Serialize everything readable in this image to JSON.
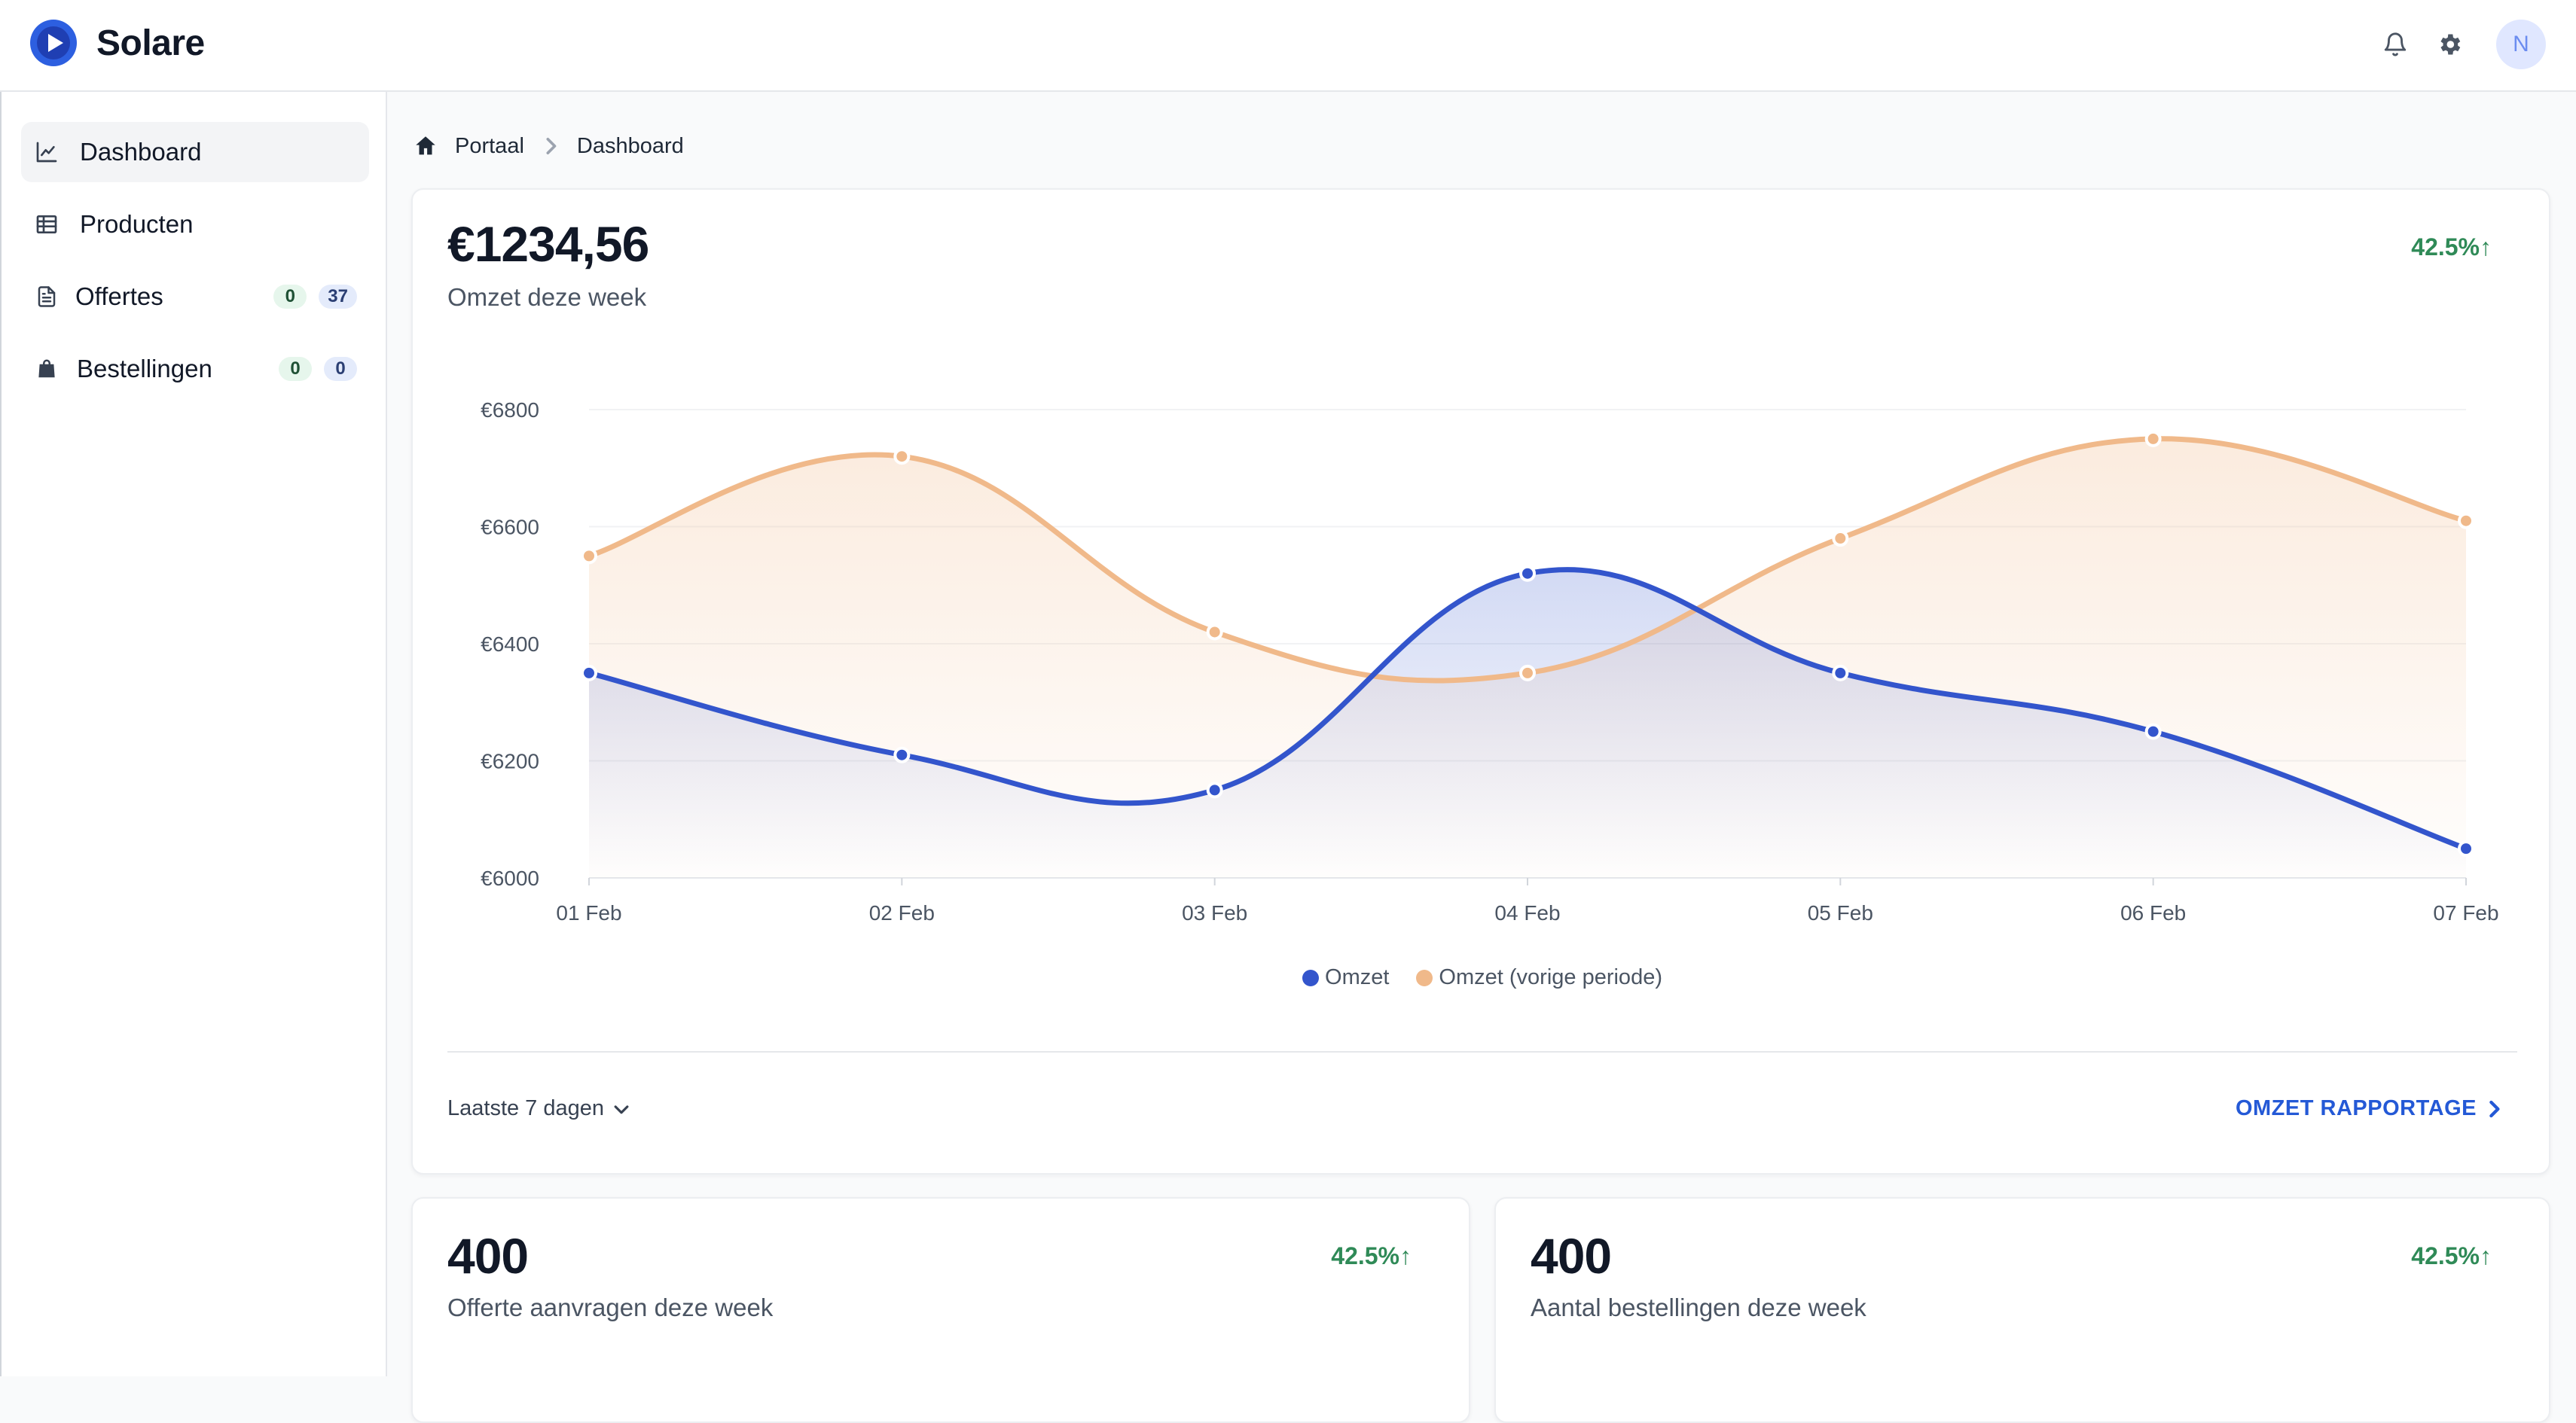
{
  "app": {
    "name": "Solare",
    "user_initial": "N"
  },
  "topbar": {
    "icons": [
      "bell-icon",
      "gear-icon"
    ]
  },
  "sidebar": {
    "items": [
      {
        "label": "Dashboard",
        "icon": "chart-line-icon",
        "active": true
      },
      {
        "label": "Producten",
        "icon": "table-icon"
      },
      {
        "label": "Offertes",
        "icon": "document-icon",
        "badges": [
          "0",
          "37"
        ]
      },
      {
        "label": "Bestellingen",
        "icon": "shopping-bag-icon",
        "badges": [
          "0",
          "0"
        ]
      }
    ]
  },
  "breadcrumb": {
    "items": [
      "Portaal",
      "Dashboard"
    ]
  },
  "revenue_card": {
    "value": "€1234,56",
    "label": "Omzet deze week",
    "change": "42.5%↑",
    "period": "Laatste 7 dagen",
    "link": "OMZET RAPPORTAGE"
  },
  "cards": [
    {
      "value": "400",
      "label": "Offerte aanvragen deze week",
      "change": "42.5%↑"
    },
    {
      "value": "400",
      "label": "Aantal bestellingen deze week",
      "change": "42.5%↑"
    }
  ],
  "colors": {
    "accent": "#2459d6",
    "series_current": "#3355cc",
    "series_previous": "#f0b98a",
    "positive": "#2f8a57"
  },
  "chart_data": {
    "type": "area",
    "x": [
      "01 Feb",
      "02 Feb",
      "03 Feb",
      "04 Feb",
      "05 Feb",
      "06 Feb",
      "07 Feb"
    ],
    "y_ticks": [
      "€6800",
      "€6600",
      "€6400",
      "€6200",
      "€6000"
    ],
    "ylim": [
      6000,
      6800
    ],
    "series": [
      {
        "name": "Omzet",
        "values": [
          6350,
          6210,
          6150,
          6520,
          6350,
          6250,
          6050
        ]
      },
      {
        "name": "Omzet (vorige periode)",
        "values": [
          6550,
          6720,
          6420,
          6350,
          6580,
          6750,
          6610
        ]
      }
    ],
    "legend_position": "bottom-center",
    "grid": true
  }
}
